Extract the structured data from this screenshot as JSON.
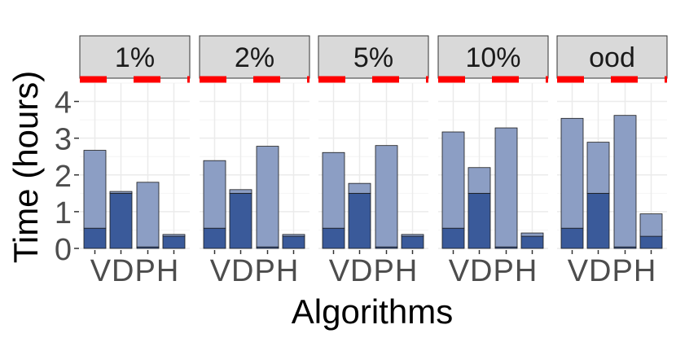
{
  "chart_data": {
    "type": "bar",
    "stacked": true,
    "facets": [
      "1%",
      "2%",
      "5%",
      "10%",
      "ood"
    ],
    "categories": [
      "V",
      "D",
      "P",
      "H"
    ],
    "xlabel": "Algorithms",
    "ylabel": "Time (hours)",
    "ylim": [
      0,
      4.5
    ],
    "yticks": [
      0,
      1,
      2,
      3,
      4
    ],
    "grid": true,
    "series": [
      {
        "color": "#3a5a9a",
        "values": [
          [
            0.55,
            1.5,
            0.04,
            0.33
          ],
          [
            0.55,
            1.5,
            0.04,
            0.33
          ],
          [
            0.55,
            1.5,
            0.04,
            0.33
          ],
          [
            0.55,
            1.5,
            0.04,
            0.33
          ],
          [
            0.55,
            1.5,
            0.04,
            0.33
          ]
        ]
      },
      {
        "color": "#8c9ec4",
        "values": [
          [
            2.12,
            0.05,
            1.76,
            0.05
          ],
          [
            1.84,
            0.1,
            2.74,
            0.05
          ],
          [
            2.06,
            0.27,
            2.76,
            0.05
          ],
          [
            2.62,
            0.7,
            3.24,
            0.09
          ],
          [
            2.99,
            1.39,
            3.58,
            0.61
          ]
        ]
      }
    ],
    "reference_line": {
      "y": 4.6,
      "style": "dashed",
      "color": "#ff0000"
    },
    "colors": {
      "strip_fill": "#d9d9d9",
      "panel_grid": "#ebebeb",
      "bar_outline": "#1a1a1a"
    }
  }
}
